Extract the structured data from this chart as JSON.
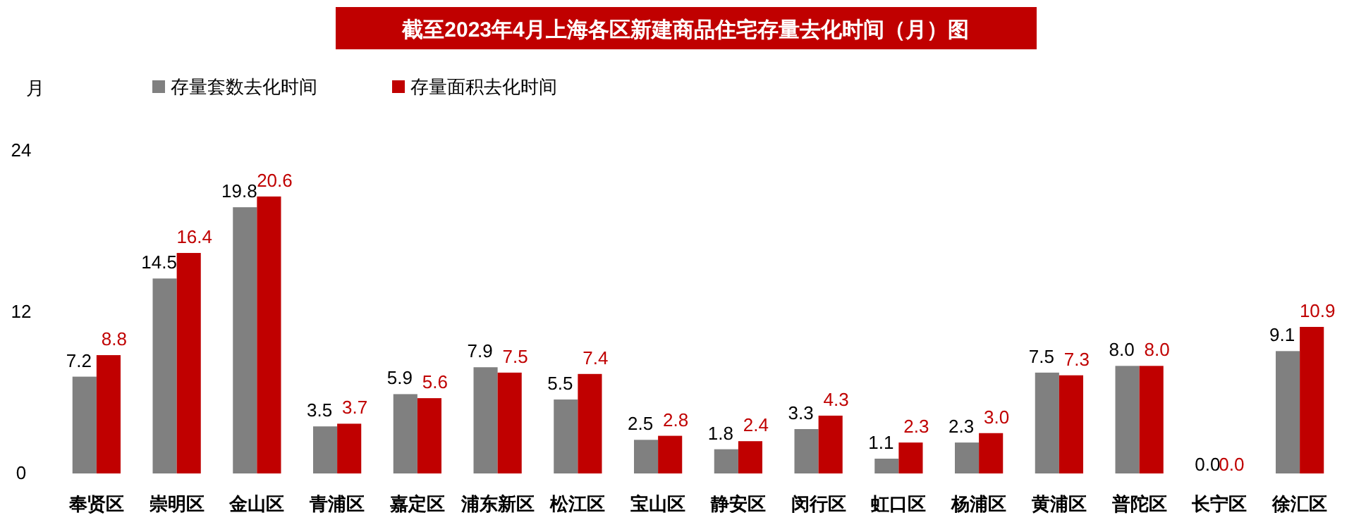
{
  "chart_data": {
    "type": "bar",
    "title": "截至2023年4月上海各区新建商品住宅存量去化时间（月）图",
    "ylabel": "月",
    "categories": [
      "奉贤区",
      "崇明区",
      "金山区",
      "青浦区",
      "嘉定区",
      "浦东新区",
      "松江区",
      "宝山区",
      "静安区",
      "闵行区",
      "虹口区",
      "杨浦区",
      "黄浦区",
      "普陀区",
      "长宁区",
      "徐汇区"
    ],
    "series": [
      {
        "name": "存量套数去化时间",
        "color": "#808080",
        "values": [
          7.2,
          14.5,
          19.8,
          3.5,
          5.9,
          7.9,
          5.5,
          2.5,
          1.8,
          3.3,
          1.1,
          2.3,
          7.5,
          8.0,
          0.0,
          9.1
        ],
        "value_labels": [
          "7.2",
          "14.5",
          "19.8",
          "3.5",
          "5.9",
          "7.9",
          "5.5",
          "2.5",
          "1.8",
          "3.3",
          "1.1",
          "2.3",
          "7.5",
          "8.0",
          "0.0",
          "9.1"
        ]
      },
      {
        "name": "存量面积去化时间",
        "color": "#c00000",
        "values": [
          8.8,
          16.4,
          20.6,
          3.7,
          5.6,
          7.5,
          7.4,
          2.8,
          2.4,
          4.3,
          2.3,
          3.0,
          7.3,
          8.0,
          0.0,
          10.9
        ],
        "value_labels": [
          "8.8",
          "16.4",
          "20.6",
          "3.7",
          "5.6",
          "7.5",
          "7.4",
          "2.8",
          "2.4",
          "4.3",
          "2.3",
          "3.0",
          "7.3",
          "8.0",
          "0.0",
          "10.9"
        ]
      }
    ],
    "ylim": [
      0,
      24
    ],
    "yticks": [
      0,
      12,
      24
    ],
    "legend": "top left"
  }
}
